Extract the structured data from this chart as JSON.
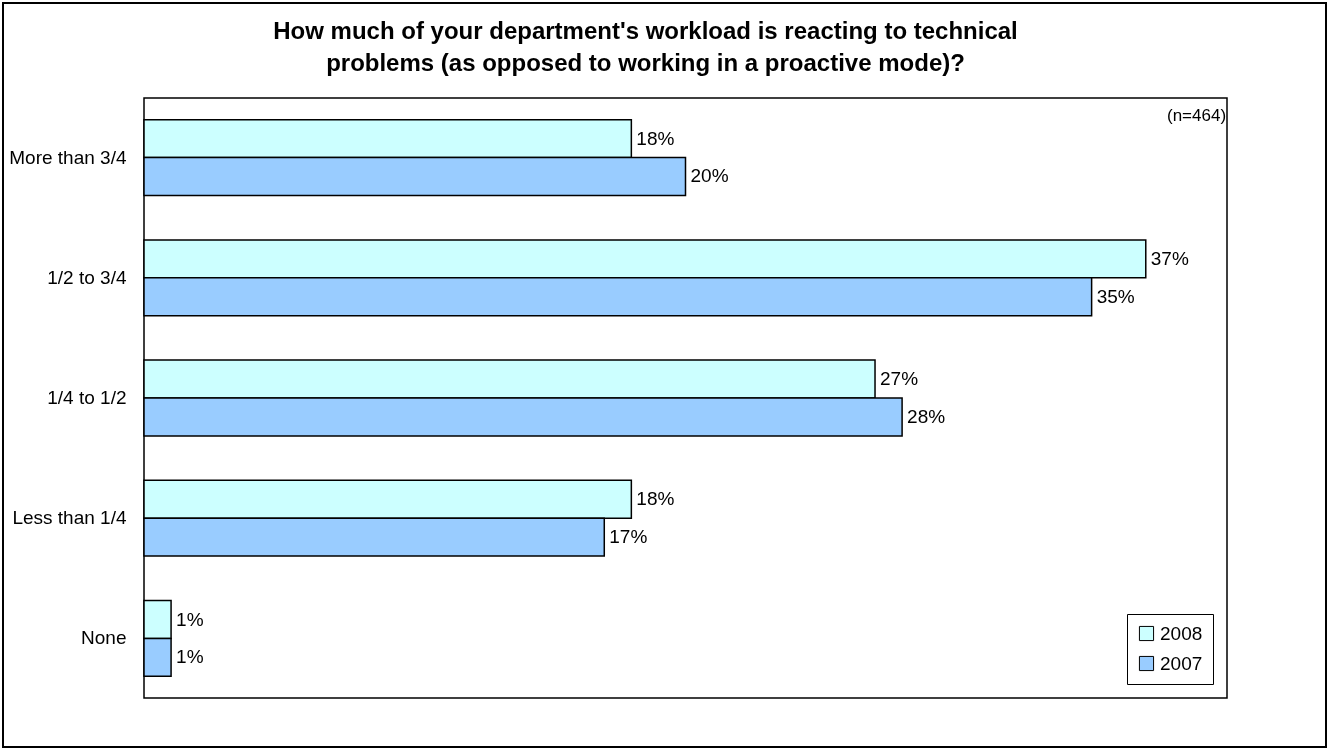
{
  "chart_data": {
    "type": "bar",
    "orientation": "horizontal",
    "title": "How much of your department's workload is reacting to technical\nproblems (as opposed to working in a proactive mode)?",
    "annotations": [
      "(n=464)"
    ],
    "categories": [
      "More than 3/4",
      "1/2 to 3/4",
      "1/4 to 1/2",
      "Less than 1/4",
      "None"
    ],
    "series": [
      {
        "name": "2008",
        "color": "#ccffff",
        "values": [
          18,
          37,
          27,
          18,
          1
        ],
        "value_labels": [
          "18%",
          "37%",
          "27%",
          "18%",
          "1%"
        ]
      },
      {
        "name": "2007",
        "color": "#99ccff",
        "values": [
          20,
          35,
          28,
          17,
          1
        ],
        "value_labels": [
          "20%",
          "35%",
          "28%",
          "17%",
          "1%"
        ]
      }
    ],
    "xlim": [
      0,
      40
    ],
    "tick_labels": "y",
    "grid": false,
    "legend": "bottom right"
  }
}
